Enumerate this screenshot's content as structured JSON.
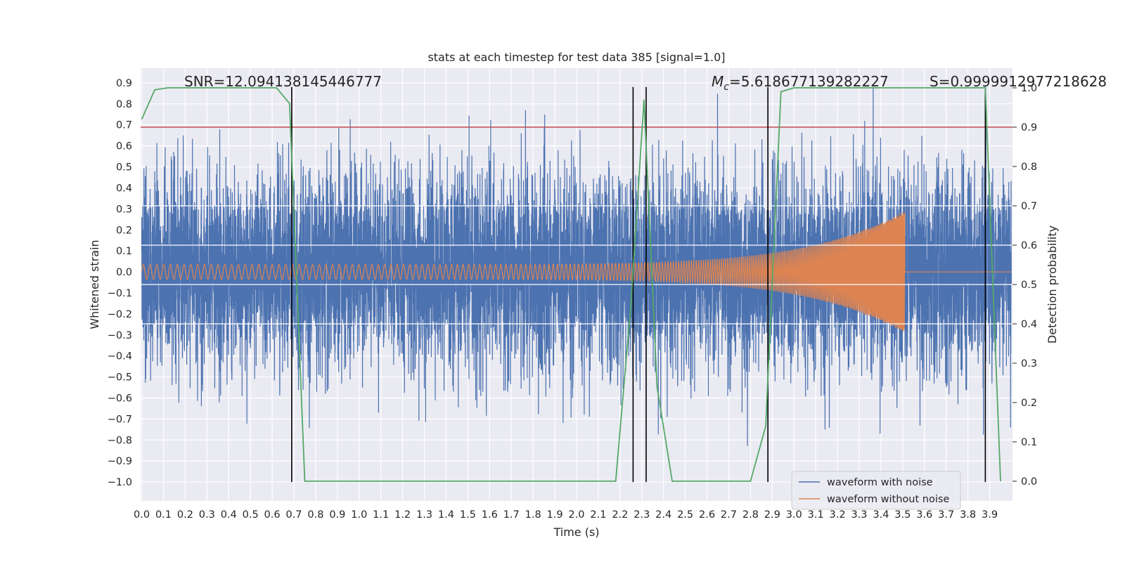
{
  "chart_data": {
    "type": "line",
    "title": "stats at each timestep for test data 385 [signal=1.0]",
    "xlabel": "Time (s)",
    "ylabel": "Whitened strain",
    "y2label": "Detection probability",
    "xlim": [
      -0.005,
      4.005
    ],
    "ylim": [
      -1.09,
      0.97
    ],
    "y2lim": [
      -0.05,
      1.05
    ],
    "xticks": [
      0.0,
      0.1,
      0.2,
      0.3,
      0.4,
      0.5,
      0.6,
      0.7,
      0.8,
      0.9,
      1.0,
      1.1,
      1.2,
      1.3,
      1.4,
      1.5,
      1.6,
      1.7,
      1.8,
      1.9,
      2.0,
      2.1,
      2.2,
      2.3,
      2.4,
      2.5,
      2.6,
      2.7,
      2.8,
      2.9,
      3.0,
      3.1,
      3.2,
      3.3,
      3.4,
      3.5,
      3.6,
      3.7,
      3.8,
      3.9
    ],
    "xtick_labels": [
      "0.0",
      "0.1",
      "0.2",
      "0.3",
      "0.4",
      "0.5",
      "0.6",
      "0.7",
      "0.8",
      "0.9",
      "1.0",
      "1.1",
      "1.2",
      "1.3",
      "1.4",
      "1.5",
      "1.6",
      "1.7",
      "1.8",
      "1.9",
      "2.0",
      "2.1",
      "2.2",
      "2.3",
      "2.4",
      "2.5",
      "2.6",
      "2.7",
      "2.8",
      "2.9",
      "3.0",
      "3.1",
      "3.2",
      "3.3",
      "3.4",
      "3.5",
      "3.6",
      "3.7",
      "3.8",
      "3.9"
    ],
    "yticks": [
      0.9,
      0.8,
      0.7,
      0.6,
      0.5,
      0.4,
      0.3,
      0.2,
      0.1,
      0.0,
      -0.1,
      -0.2,
      -0.3,
      -0.4,
      -0.5,
      -0.6,
      -0.7,
      -0.8,
      -0.9,
      -1.0
    ],
    "ytick_labels": [
      "0.9",
      "0.8",
      "0.7",
      "0.6",
      "0.5",
      "0.4",
      "0.3",
      "0.2",
      "0.1",
      "0.0",
      "−0.1",
      "−0.2",
      "−0.3",
      "−0.4",
      "−0.5",
      "−0.6",
      "−0.7",
      "−0.8",
      "−0.9",
      "−1.0"
    ],
    "y2ticks": [
      1.0,
      0.9,
      0.8,
      0.7,
      0.6,
      0.5,
      0.4,
      0.3,
      0.2,
      0.1,
      0.0
    ],
    "y2tick_labels": [
      "1.0",
      "0.9",
      "0.8",
      "0.7",
      "0.6",
      "0.5",
      "0.4",
      "0.3",
      "0.2",
      "0.1",
      "0.0"
    ],
    "annotations": {
      "snr": "SNR=12.094138145446777",
      "mc_symbol": "M",
      "mc_subscript": "c",
      "mc_value": "=5.618677139282227",
      "s": "S=0.9999912977218628"
    },
    "legend": {
      "placement": "lower-right",
      "entries": [
        "waveform with noise",
        "waveform without noise"
      ]
    },
    "series": [
      {
        "name": "waveform with noise",
        "axis": "left",
        "color": "#4c72b0",
        "kind": "noise",
        "samples": 8192,
        "duration": 4.0,
        "sigma": 0.23,
        "min": -0.83,
        "max": 0.88
      },
      {
        "name": "waveform without noise",
        "axis": "left",
        "color": "#dd8452",
        "kind": "chirp",
        "f0": 32,
        "f_end": 240,
        "t_merger": 3.51,
        "amp_start": 0.035,
        "amp_merger": 0.29
      },
      {
        "name": "Detection probability",
        "axis": "right",
        "color": "#55a868",
        "x": [
          0.0,
          0.06,
          0.12,
          0.2,
          0.4,
          0.62,
          0.68,
          0.75,
          0.9,
          1.5,
          2.0,
          2.18,
          2.25,
          2.31,
          2.37,
          2.44,
          2.6,
          2.8,
          2.87,
          2.94,
          3.0,
          3.3,
          3.5,
          3.8,
          3.88,
          3.95
        ],
        "y": [
          0.92,
          0.995,
          1.0,
          1.0,
          1.0,
          1.0,
          0.96,
          0.0,
          0.0,
          0.0,
          0.0,
          0.0,
          0.45,
          0.97,
          0.24,
          0.0,
          0.0,
          0.0,
          0.14,
          0.99,
          1.0,
          1.0,
          1.0,
          1.0,
          1.0,
          0.0
        ]
      }
    ],
    "threshold": {
      "axis": "right",
      "value": 0.9,
      "color": "#c44e52"
    },
    "vlines": {
      "x": [
        0.69,
        2.26,
        2.32,
        2.88,
        3.88
      ],
      "ymin": -1.0,
      "ymax": 0.88,
      "color": "#000000"
    },
    "white_hlines_right_axis": [
      0.6,
      0.5,
      0.4,
      0.7
    ]
  }
}
